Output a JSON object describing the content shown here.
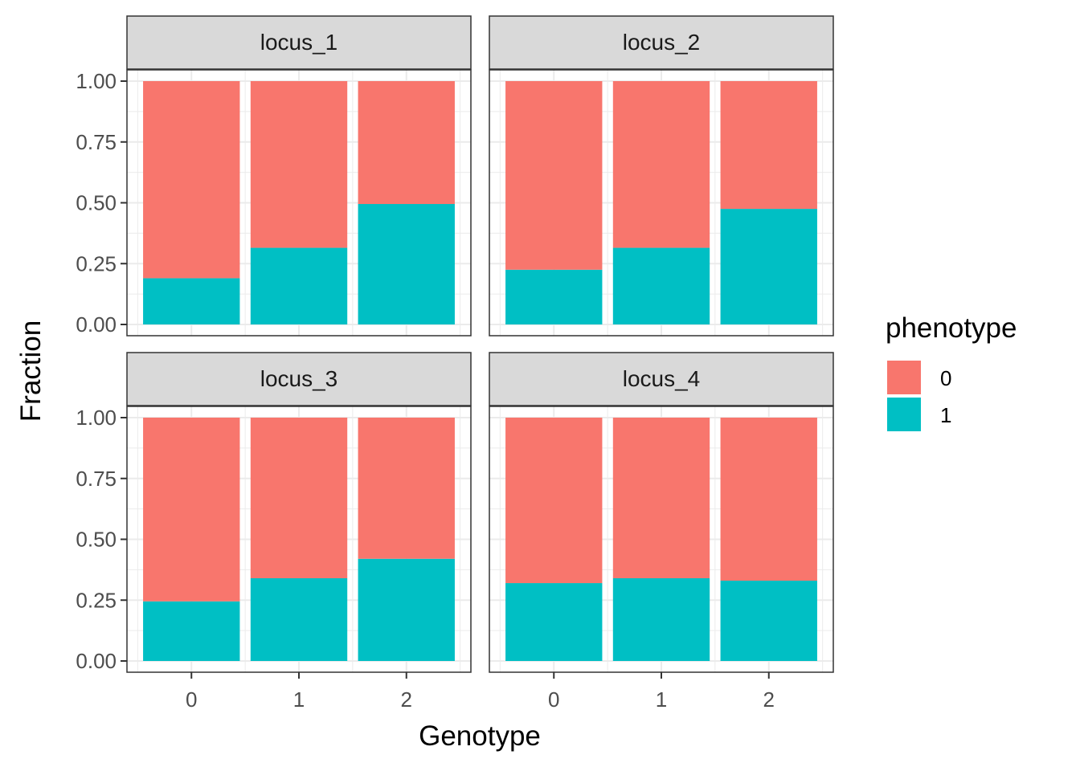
{
  "chart_data": {
    "type": "bar",
    "stacked": true,
    "xlabel": "Genotype",
    "ylabel": "Fraction",
    "categories": [
      "0",
      "1",
      "2"
    ],
    "ylim": [
      0,
      1
    ],
    "yticks": [
      "0.00",
      "0.25",
      "0.50",
      "0.75",
      "1.00"
    ],
    "legend": {
      "title": "phenotype",
      "position": "right",
      "entries": [
        "0",
        "1"
      ]
    },
    "colors": {
      "0": "#F8766D",
      "1": "#00BFC4",
      "strip": "#D9D9D9",
      "grid": "#EBEBEB"
    },
    "panels": [
      {
        "label": "locus_1",
        "series": [
          {
            "name": "0",
            "values": [
              0.81,
              0.685,
              0.505
            ]
          },
          {
            "name": "1",
            "values": [
              0.19,
              0.315,
              0.495
            ]
          }
        ]
      },
      {
        "label": "locus_2",
        "series": [
          {
            "name": "0",
            "values": [
              0.775,
              0.685,
              0.525
            ]
          },
          {
            "name": "1",
            "values": [
              0.225,
              0.315,
              0.475
            ]
          }
        ]
      },
      {
        "label": "locus_3",
        "series": [
          {
            "name": "0",
            "values": [
              0.755,
              0.66,
              0.58
            ]
          },
          {
            "name": "1",
            "values": [
              0.245,
              0.34,
              0.42
            ]
          }
        ]
      },
      {
        "label": "locus_4",
        "series": [
          {
            "name": "0",
            "values": [
              0.68,
              0.66,
              0.67
            ]
          },
          {
            "name": "1",
            "values": [
              0.32,
              0.34,
              0.33
            ]
          }
        ]
      }
    ]
  }
}
